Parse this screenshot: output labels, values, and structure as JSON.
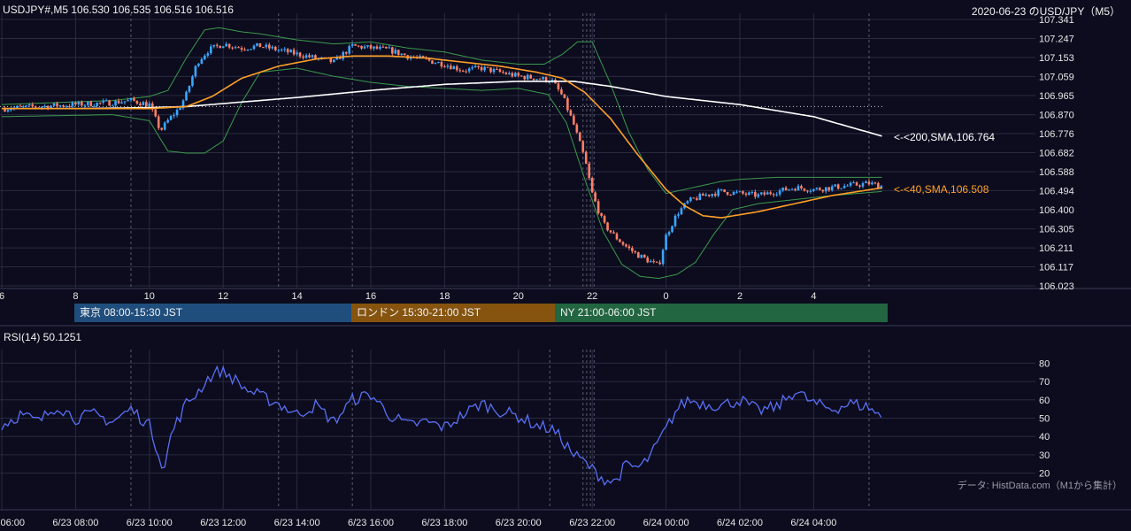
{
  "header": {
    "symbol_line": "USDJPY#,M5 106.530 106.535 106.516 106.516",
    "title_right": "2020-06-23 のUSD/JPY（M5）"
  },
  "sessions": [
    {
      "label": "東京 08:00-15:30 JST",
      "color": "#1f4e7d"
    },
    {
      "label": "ロンドン 15:30-21:00 JST",
      "color": "#86540f"
    },
    {
      "label": "NY 21:00-06:00 JST",
      "color": "#226541"
    }
  ],
  "rsi": {
    "label": "RSI(14) 50.1251"
  },
  "source_note": "データ: HistData.com（M1から集計）",
  "colors": {
    "background": "#0c0c1e",
    "grid": "#2a2a40",
    "up": "#3aa6ff",
    "down": "#ff7f66",
    "sma40": "#ffa028",
    "sma200": "#ffffff",
    "bollinger": "#3c9a4c",
    "rsi": "#5b6ff5"
  },
  "chart_data": [
    {
      "type": "candlestick",
      "title": "2020-06-23 のUSD/JPY（M5）",
      "y_ticks": [
        "107.341",
        "107.247",
        "107.153",
        "107.059",
        "106.965",
        "106.870",
        "106.776",
        "106.682",
        "106.588",
        "106.494",
        "106.400",
        "106.305",
        "106.211",
        "106.117",
        "106.023"
      ],
      "ylim": [
        106.023,
        107.341
      ],
      "x_hour_ticks": [
        "6",
        "8",
        "10",
        "12",
        "14",
        "16",
        "18",
        "20",
        "22",
        "0",
        "2",
        "4"
      ],
      "x_date_ticks": [
        "6/23 06:00",
        "6/23 08:00",
        "6/23 10:00",
        "6/23 12:00",
        "6/23 14:00",
        "6/23 16:00",
        "6/23 18:00",
        "6/23 20:00",
        "6/23 22:00",
        "6/24 00:00",
        "6/24 02:00",
        "6/24 04:00"
      ],
      "reference_line": 106.91,
      "last_ohlc": {
        "open": 106.53,
        "high": 106.535,
        "low": 106.516,
        "close": 106.516
      },
      "close_anchors": {
        "hours": [
          6.0,
          7.0,
          8.0,
          9.0,
          9.5,
          10.0,
          10.3,
          10.5,
          10.8,
          11.0,
          11.3,
          11.6,
          12.0,
          12.5,
          13.0,
          13.5,
          14.0,
          14.5,
          15.0,
          15.5,
          16.0,
          16.5,
          17.0,
          17.5,
          18.0,
          18.5,
          19.0,
          19.5,
          20.0,
          20.5,
          20.9,
          21.2,
          21.5,
          21.8,
          22.0,
          22.3,
          22.6,
          22.9,
          23.2,
          23.5,
          23.8,
          24.0,
          24.3,
          24.6,
          25.0,
          25.5,
          26.0,
          26.5,
          27.0,
          27.5,
          28.0,
          28.5,
          29.0,
          29.5,
          29.85
        ],
        "close": [
          106.9,
          106.91,
          106.92,
          106.93,
          106.94,
          106.92,
          106.79,
          106.84,
          106.9,
          106.97,
          107.13,
          107.19,
          107.22,
          107.2,
          107.21,
          107.19,
          107.17,
          107.15,
          107.13,
          107.21,
          107.2,
          107.19,
          107.16,
          107.14,
          107.12,
          107.09,
          107.1,
          107.08,
          107.06,
          107.05,
          107.04,
          106.96,
          106.82,
          106.65,
          106.48,
          106.33,
          106.27,
          106.22,
          106.18,
          106.15,
          106.12,
          106.27,
          106.38,
          106.44,
          106.47,
          106.49,
          106.48,
          106.47,
          106.49,
          106.51,
          106.5,
          106.51,
          106.52,
          106.53,
          106.516
        ]
      },
      "series": [
        {
          "name": "<-<200,SMA,106.764",
          "type": "line",
          "last": 106.764
        },
        {
          "name": "<-<40,SMA,106.508",
          "type": "line",
          "last": 106.508
        },
        {
          "name": "Bollinger Bands",
          "type": "band"
        }
      ],
      "sma200_anchors": {
        "hours": [
          6,
          8,
          10,
          11,
          12,
          14,
          16,
          18,
          20,
          21.5,
          22.5,
          24,
          26,
          28,
          29.85
        ],
        "values": [
          106.9,
          106.9,
          106.905,
          106.91,
          106.925,
          106.955,
          106.99,
          107.02,
          107.035,
          107.035,
          107.01,
          106.96,
          106.92,
          106.86,
          106.764
        ]
      },
      "sma40_anchors": {
        "hours": [
          6,
          9,
          10,
          11,
          11.7,
          12.5,
          13.5,
          14.5,
          15.5,
          16.5,
          17.5,
          18.5,
          19.5,
          20.5,
          21.2,
          21.8,
          22.5,
          23.2,
          24.0,
          24.5,
          25.0,
          25.5,
          26.5,
          27.5,
          28.5,
          29.85
        ],
        "values": [
          106.9,
          106.9,
          106.9,
          106.91,
          106.96,
          107.05,
          107.11,
          107.145,
          107.16,
          107.16,
          107.15,
          107.13,
          107.11,
          107.08,
          107.05,
          106.98,
          106.85,
          106.68,
          106.5,
          106.42,
          106.37,
          106.36,
          106.39,
          106.43,
          106.47,
          106.508
        ]
      },
      "bb_upper_anchors": {
        "hours": [
          6,
          9,
          10,
          10.5,
          11,
          11.5,
          11.9,
          12.5,
          13,
          14,
          15,
          16,
          17,
          18,
          19,
          20,
          20.7,
          21.2,
          21.6,
          22.0,
          22.5,
          23.0,
          23.5,
          24.0,
          24.5,
          25.0,
          25.5,
          26,
          27,
          28,
          29.85
        ],
        "values": [
          106.92,
          106.94,
          106.96,
          106.99,
          107.15,
          107.29,
          107.3,
          107.28,
          107.27,
          107.24,
          107.22,
          107.23,
          107.2,
          107.18,
          107.14,
          107.12,
          107.12,
          107.17,
          107.23,
          107.23,
          107.02,
          106.78,
          106.6,
          106.48,
          106.5,
          106.52,
          106.54,
          106.55,
          106.56,
          106.56,
          106.56
        ]
      },
      "bb_lower_anchors": {
        "hours": [
          6,
          9,
          10,
          10.5,
          11,
          11.5,
          12,
          12.5,
          13,
          14,
          15,
          16,
          17,
          18,
          19,
          20,
          20.8,
          21.3,
          21.8,
          22.3,
          22.8,
          23.3,
          23.8,
          24.3,
          24.8,
          25.3,
          25.8,
          26.5,
          27.5,
          28.5,
          29.85
        ],
        "values": [
          106.86,
          106.87,
          106.84,
          106.69,
          106.68,
          106.68,
          106.74,
          106.93,
          107.08,
          107.1,
          107.06,
          107.03,
          107.01,
          107.0,
          106.99,
          107.0,
          106.97,
          106.83,
          106.55,
          106.29,
          106.13,
          106.07,
          106.06,
          106.08,
          106.14,
          106.28,
          106.4,
          106.43,
          106.45,
          106.47,
          106.49
        ]
      }
    },
    {
      "type": "line",
      "title": "RSI(14) 50.1251",
      "y_ticks": [
        "80",
        "70",
        "60",
        "50",
        "40",
        "30",
        "20"
      ],
      "ylim": [
        15,
        85
      ],
      "last": 50.1251,
      "rsi_anchors": {
        "hours": [
          6.0,
          6.5,
          7.0,
          7.5,
          8.0,
          8.5,
          9.0,
          9.5,
          10.0,
          10.3,
          10.4,
          10.6,
          10.8,
          11.0,
          11.3,
          11.6,
          11.9,
          12.2,
          12.6,
          13.0,
          13.5,
          14.0,
          14.5,
          15.0,
          15.5,
          16.0,
          16.5,
          17.0,
          17.5,
          18.0,
          18.5,
          19.0,
          19.5,
          20.0,
          20.5,
          20.9,
          21.2,
          21.5,
          21.8,
          22.0,
          22.3,
          22.6,
          22.9,
          23.3,
          23.6,
          24.0,
          24.3,
          24.6,
          25.0,
          25.5,
          26.0,
          26.5,
          27.0,
          27.5,
          28.0,
          28.5,
          29.0,
          29.5,
          29.85
        ],
        "values": [
          46,
          52,
          48,
          57,
          50,
          52,
          48,
          55,
          46,
          28,
          22,
          42,
          50,
          58,
          64,
          72,
          76,
          73,
          66,
          62,
          58,
          52,
          57,
          48,
          60,
          63,
          52,
          46,
          48,
          45,
          52,
          58,
          54,
          51,
          46,
          44,
          38,
          30,
          26,
          22,
          17,
          15,
          24,
          23,
          30,
          44,
          55,
          60,
          58,
          57,
          60,
          54,
          56,
          65,
          58,
          55,
          58,
          56,
          50.13
        ]
      }
    }
  ]
}
